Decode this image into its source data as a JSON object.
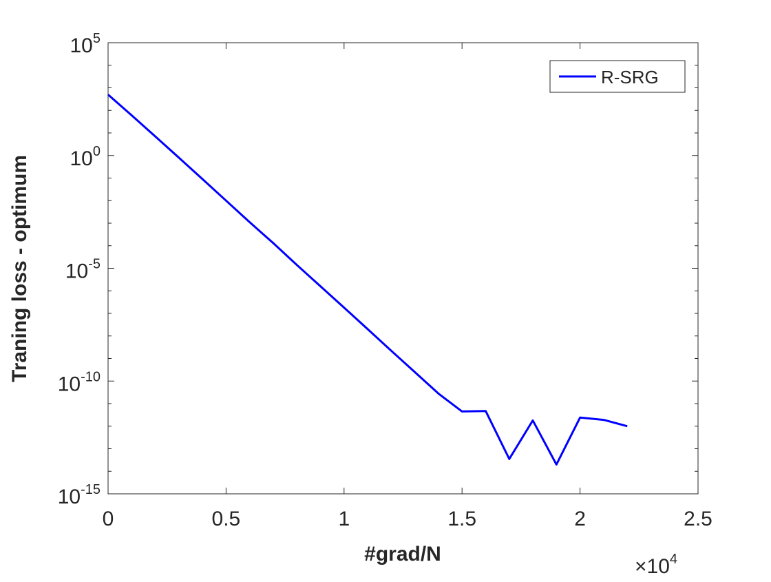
{
  "chart_data": {
    "type": "line",
    "title": "",
    "xlabel": "#grad/N",
    "ylabel": "Traning loss - optimum",
    "x_multiplier": {
      "base": "×10",
      "exponent": "4"
    },
    "xlim": [
      0,
      2.5
    ],
    "xticks": [
      {
        "value": 0,
        "label": "0"
      },
      {
        "value": 0.5,
        "label": "0.5"
      },
      {
        "value": 1,
        "label": "1"
      },
      {
        "value": 1.5,
        "label": "1.5"
      },
      {
        "value": 2,
        "label": "2"
      },
      {
        "value": 2.5,
        "label": "2.5"
      }
    ],
    "yscale": "log",
    "ylim": [
      1e-15,
      100000.0
    ],
    "yticks": [
      {
        "exp": -15,
        "base": "10",
        "sup": "-15"
      },
      {
        "exp": -10,
        "base": "10",
        "sup": "-10"
      },
      {
        "exp": -5,
        "base": "10",
        "sup": "-5"
      },
      {
        "exp": 0,
        "base": "10",
        "sup": "0"
      },
      {
        "exp": 5,
        "base": "10",
        "sup": "5"
      }
    ],
    "grid": false,
    "legend": {
      "placement": "top-right"
    },
    "series": [
      {
        "name": "R-SRG",
        "color": "#0000ff",
        "x": [
          0,
          0.1,
          0.2,
          0.3,
          0.4,
          0.5,
          0.6,
          0.7,
          0.8,
          0.9,
          1.0,
          1.1,
          1.2,
          1.3,
          1.4,
          1.5,
          1.6,
          1.7,
          1.8,
          1.9,
          2.0,
          2.1,
          2.2
        ],
        "y": [
          500.0,
          60.0,
          7.0,
          0.8,
          0.09,
          0.01,
          0.0011,
          0.00013,
          1.4e-05,
          1.6e-06,
          1.8e-07,
          2e-08,
          2.2e-09,
          2.5e-10,
          2.8e-11,
          4.5e-12,
          4.7e-12,
          3.5e-14,
          1.8e-12,
          2e-14,
          2.4e-12,
          1.9e-12,
          1e-12
        ]
      }
    ]
  }
}
